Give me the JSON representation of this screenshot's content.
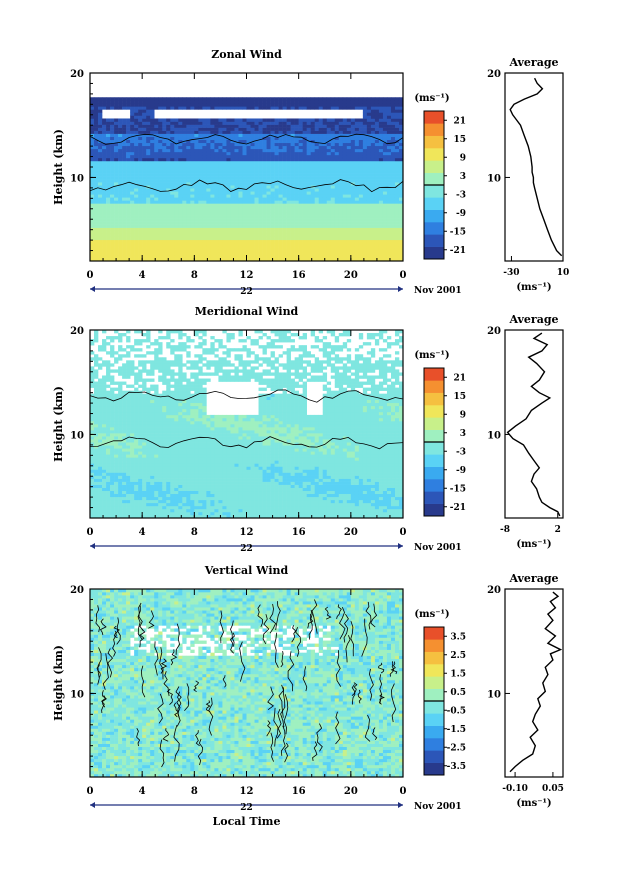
{
  "chart_data": [
    {
      "type": "heatmap",
      "title": "Zonal Wind",
      "ylabel": "Height (km)",
      "x_ticks": [
        "0",
        "4",
        "8",
        "12",
        "16",
        "20",
        "0"
      ],
      "y_ticks": [
        "20",
        "10"
      ],
      "xlim": [
        0,
        24
      ],
      "ylim": [
        2,
        20
      ],
      "date_day": "22",
      "date_label": "Nov 2001",
      "colorbar": {
        "unit": "(ms⁻¹)",
        "ticks": [
          "21",
          "15",
          "9",
          "3",
          "-3",
          "-9",
          "-15",
          "-21"
        ],
        "range": [
          -24,
          24
        ]
      },
      "profile": {
        "title": "Average",
        "xlabel": "(ms⁻¹)",
        "x_ticks": [
          "-30",
          "10"
        ],
        "y_ticks": [
          "20",
          "10"
        ],
        "xlim": [
          -35,
          10
        ],
        "x": [
          9,
          5,
          1,
          -2,
          -5,
          -8,
          -10,
          -12,
          -13,
          -13,
          -14,
          -14,
          -15,
          -17,
          -20,
          -23,
          -26,
          -29,
          -31,
          -28,
          -20,
          -10,
          -6,
          -10,
          -12
        ],
        "y": [
          2.5,
          3,
          4,
          5,
          6,
          7,
          8,
          9,
          9.5,
          10,
          10.5,
          11,
          12,
          13,
          14,
          15,
          15.5,
          16,
          16.5,
          17,
          17.5,
          18,
          18.5,
          19,
          19.5
        ]
      }
    },
    {
      "type": "heatmap",
      "title": "Meridional Wind",
      "ylabel": "Height (km)",
      "x_ticks": [
        "0",
        "4",
        "8",
        "12",
        "16",
        "20",
        "0"
      ],
      "y_ticks": [
        "20",
        "10"
      ],
      "xlim": [
        0,
        24
      ],
      "ylim": [
        2,
        20
      ],
      "date_day": "22",
      "date_label": "Nov 2001",
      "colorbar": {
        "unit": "(ms⁻¹)",
        "ticks": [
          "21",
          "15",
          "9",
          "3",
          "-3",
          "-9",
          "-15",
          "-21"
        ],
        "range": [
          -24,
          24
        ]
      },
      "profile": {
        "title": "Average",
        "xlabel": "(ms⁻¹)",
        "x_ticks": [
          "-8",
          "2"
        ],
        "y_ticks": [
          "20",
          "10"
        ],
        "xlim": [
          -8,
          3
        ],
        "x": [
          2.4,
          2,
          0.5,
          -1,
          -1.5,
          -2,
          -3,
          -2.5,
          -1.5,
          -2.5,
          -3.5,
          -4.5,
          -6.5,
          -7.5,
          -6,
          -4,
          -3,
          -1,
          0.5,
          -1.5,
          -3,
          -1.5,
          -0.5,
          -2,
          -3.5,
          -1,
          0,
          -2.5,
          -1
        ],
        "y": [
          2.2,
          2.6,
          3,
          3.5,
          4,
          4.8,
          5.5,
          6.2,
          6.8,
          7.5,
          8.2,
          9,
          9.6,
          10.2,
          10.8,
          11.5,
          12.3,
          13,
          13.5,
          14,
          14.6,
          15.2,
          16,
          16.8,
          17.4,
          18,
          18.6,
          19.2,
          19.7
        ]
      }
    },
    {
      "type": "heatmap",
      "title": "Vertical Wind",
      "ylabel": "Height (km)",
      "xlabel": "Local Time",
      "x_ticks": [
        "0",
        "4",
        "8",
        "12",
        "16",
        "20",
        "0"
      ],
      "y_ticks": [
        "20",
        "10"
      ],
      "xlim": [
        0,
        24
      ],
      "ylim": [
        2,
        20
      ],
      "date_day": "22",
      "date_label": "Nov 2001",
      "colorbar": {
        "unit": "(ms⁻¹)",
        "ticks": [
          "3.5",
          "2.5",
          "1.5",
          "0.5",
          "-0.5",
          "-1.5",
          "-2.5",
          "-3.5"
        ],
        "range": [
          -4,
          4
        ]
      },
      "profile": {
        "title": "Average",
        "xlabel": "(ms⁻¹)",
        "x_ticks": [
          "-0.10",
          "0.05"
        ],
        "y_ticks": [
          "20",
          "10"
        ],
        "xlim": [
          -0.14,
          0.09
        ],
        "x": [
          -0.12,
          -0.1,
          -0.07,
          -0.03,
          -0.02,
          -0.04,
          -0.01,
          -0.03,
          -0.02,
          0,
          -0.01,
          0.02,
          0.01,
          0.03,
          0.02,
          0.05,
          0.04,
          0.08,
          0.03,
          0.06,
          0.02,
          0.05,
          0.03,
          0.06,
          0.04,
          0.07,
          0.05
        ],
        "y": [
          2.5,
          3,
          3.6,
          4.2,
          5,
          5.8,
          6.5,
          7.3,
          8,
          8.8,
          9.5,
          10.2,
          11,
          11.8,
          12.5,
          13.2,
          13.8,
          14.2,
          14.8,
          15.5,
          16.2,
          17,
          17.6,
          18.2,
          18.8,
          19.3,
          19.7
        ]
      }
    }
  ]
}
